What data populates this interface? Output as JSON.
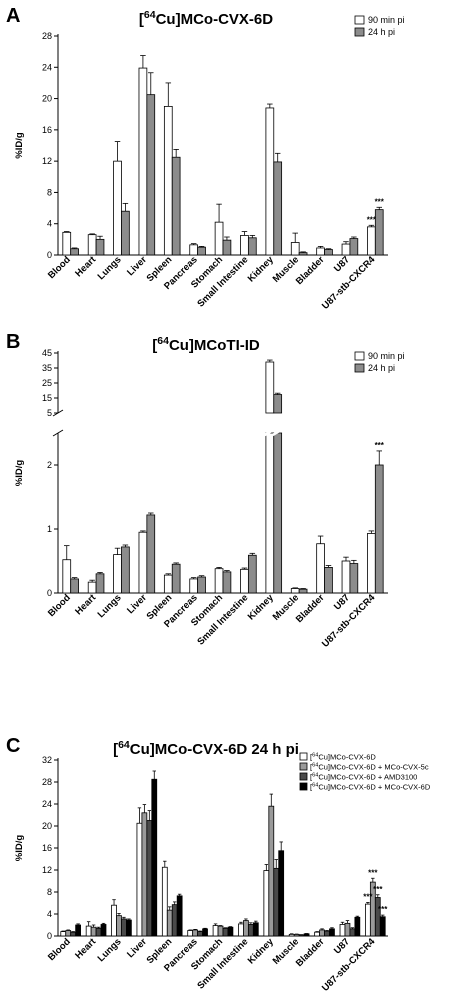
{
  "chart_data": [
    {
      "id": "A",
      "type": "bar",
      "panel_letter": "A",
      "title_prefix": "[",
      "title_sup": "64",
      "title_suffix": "Cu]MCo-CVX-6D",
      "ylabel": "%ID/g",
      "ylim": [
        0,
        28
      ],
      "yticks": [
        0,
        4,
        8,
        12,
        16,
        20,
        24,
        28
      ],
      "legend_position": "top-right",
      "categories": [
        "Blood",
        "Heart",
        "Lungs",
        "Liver",
        "Spleen",
        "Pancreas",
        "Stomach",
        "Small Intestine",
        "Kidney",
        "Muscle",
        "Bladder",
        "U87",
        "U87-stb-CXCR4"
      ],
      "series": [
        {
          "name": "90 min pi",
          "color": "#ffffff",
          "values": [
            2.9,
            2.6,
            12.0,
            23.9,
            19.0,
            1.3,
            4.2,
            2.5,
            18.8,
            1.6,
            0.9,
            1.4,
            3.6
          ],
          "errors": [
            0.1,
            0.1,
            2.5,
            1.6,
            3.0,
            0.15,
            2.3,
            0.5,
            0.5,
            1.2,
            0.2,
            0.3,
            0.2
          ]
        },
        {
          "name": "24 h pi",
          "color": "#8c8c8c",
          "values": [
            0.8,
            2.0,
            5.6,
            20.5,
            12.5,
            1.0,
            1.9,
            2.2,
            11.9,
            0.3,
            0.7,
            2.1,
            5.8
          ],
          "errors": [
            0.1,
            0.4,
            1.0,
            2.8,
            1.0,
            0.1,
            0.4,
            0.3,
            1.1,
            0.1,
            0.1,
            0.2,
            0.3
          ]
        }
      ],
      "annotations": [
        {
          "category": "U87-stb-CXCR4",
          "series": 0,
          "text": "***"
        },
        {
          "category": "U87-stb-CXCR4",
          "series": 1,
          "text": "***"
        }
      ]
    },
    {
      "id": "B",
      "type": "bar",
      "panel_letter": "B",
      "title_prefix": "[",
      "title_sup": "64",
      "title_suffix": "Cu]MCoTI-ID",
      "ylabel": "%ID/g",
      "broken_axis": true,
      "ylim_lower": [
        0,
        2.5
      ],
      "ylim_upper": [
        5,
        45
      ],
      "yticks_lower": [
        0,
        1,
        2
      ],
      "yticks_upper": [
        5,
        15,
        25,
        35,
        45
      ],
      "legend_position": "top-right",
      "categories": [
        "Blood",
        "Heart",
        "Lungs",
        "Liver",
        "Spleen",
        "Pancreas",
        "Stomach",
        "Small Intestine",
        "Kidney",
        "Muscle",
        "Bladder",
        "U87",
        "U87-stb-CXCR4"
      ],
      "series": [
        {
          "name": "90 min pi",
          "color": "#ffffff",
          "values": [
            0.52,
            0.17,
            0.6,
            0.95,
            0.28,
            0.22,
            0.38,
            0.37,
            39.0,
            0.07,
            0.77,
            0.5,
            0.93
          ],
          "errors": [
            0.22,
            0.03,
            0.1,
            0.02,
            0.02,
            0.02,
            0.02,
            0.02,
            1.3,
            0.01,
            0.12,
            0.06,
            0.04
          ]
        },
        {
          "name": "24 h pi",
          "color": "#8c8c8c",
          "values": [
            0.22,
            0.3,
            0.72,
            1.22,
            0.45,
            0.25,
            0.33,
            0.59,
            17.3,
            0.06,
            0.4,
            0.46,
            2.0
          ],
          "errors": [
            0.02,
            0.02,
            0.03,
            0.03,
            0.02,
            0.02,
            0.02,
            0.03,
            0.9,
            0.01,
            0.03,
            0.05,
            0.22
          ]
        }
      ],
      "annotations": [
        {
          "category": "U87-stb-CXCR4",
          "series": 1,
          "text": "***"
        }
      ]
    },
    {
      "id": "C",
      "type": "bar",
      "panel_letter": "C",
      "title_prefix": "[",
      "title_sup": "64",
      "title_suffix": "Cu]MCo-CVX-6D 24 h pi",
      "ylabel": "%ID/g",
      "ylim": [
        0,
        32
      ],
      "yticks": [
        0,
        4,
        8,
        12,
        16,
        20,
        24,
        28,
        32
      ],
      "legend_position": "top-right",
      "categories": [
        "Blood",
        "Heart",
        "Lungs",
        "Liver",
        "Spleen",
        "Pancreas",
        "Stomach",
        "Small Intestine",
        "Kidney",
        "Muscle",
        "Bladder",
        "U87",
        "U87-stb-CXCR4"
      ],
      "series": [
        {
          "name_prefix": "[",
          "name_sup": "64",
          "name_suffix": "Cu]MCo-CVX-6D",
          "color": "#ffffff",
          "values": [
            0.8,
            1.8,
            5.6,
            20.5,
            12.5,
            1.0,
            1.9,
            2.2,
            11.9,
            0.3,
            0.7,
            2.1,
            5.8
          ],
          "errors": [
            0.1,
            0.8,
            1.0,
            2.8,
            1.1,
            0.1,
            0.3,
            0.3,
            1.1,
            0.1,
            0.1,
            0.4,
            0.3
          ]
        },
        {
          "name_prefix": "[",
          "name_sup": "64",
          "name_suffix": "Cu]MCo-CVX-6D + MCo-CVX-5c",
          "color": "#9a9a9a",
          "values": [
            1.0,
            1.6,
            3.7,
            22.4,
            4.7,
            1.1,
            1.8,
            2.8,
            23.6,
            0.3,
            1.1,
            2.3,
            9.8
          ],
          "errors": [
            0.1,
            0.4,
            0.4,
            1.5,
            0.6,
            0.1,
            0.1,
            0.3,
            2.2,
            0.05,
            0.2,
            0.5,
            0.7
          ]
        },
        {
          "name_prefix": "[",
          "name_sup": "64",
          "name_suffix": "Cu]MCo-CVX-6D + AMD3100",
          "color": "#4a4a4a",
          "values": [
            0.7,
            1.4,
            3.1,
            21.0,
            5.7,
            0.8,
            1.4,
            2.1,
            12.3,
            0.2,
            0.9,
            1.3,
            7.0
          ],
          "errors": [
            0.1,
            0.2,
            0.3,
            1.8,
            0.5,
            0.1,
            0.1,
            0.3,
            1.6,
            0.05,
            0.1,
            0.2,
            0.5
          ]
        },
        {
          "name_prefix": "[",
          "name_sup": "64",
          "name_suffix": "Cu]MCo-CVX-6D + MCo-CVX-6D",
          "color": "#000000",
          "values": [
            2.0,
            2.1,
            2.9,
            28.5,
            7.3,
            1.3,
            1.6,
            2.4,
            15.5,
            0.4,
            1.3,
            3.4,
            3.5
          ],
          "errors": [
            0.2,
            0.2,
            0.2,
            1.5,
            0.3,
            0.1,
            0.1,
            0.3,
            1.6,
            0.05,
            0.2,
            0.2,
            0.3
          ]
        }
      ],
      "annotations": [
        {
          "category": "U87-stb-CXCR4",
          "series": 0,
          "text": "***"
        },
        {
          "category": "U87-stb-CXCR4",
          "series": 1,
          "text": "***"
        },
        {
          "category": "U87-stb-CXCR4",
          "series": 2,
          "text": "***"
        },
        {
          "category": "U87-stb-CXCR4",
          "series": 3,
          "text": "***"
        }
      ]
    }
  ]
}
